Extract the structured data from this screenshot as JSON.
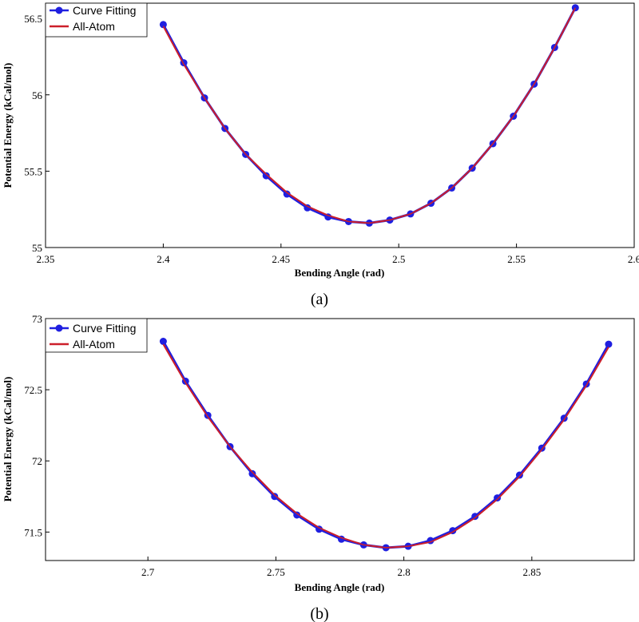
{
  "chart_data": [
    {
      "type": "line",
      "caption": "(a)",
      "xlabel": "Bending  Angle  (rad)",
      "ylabel": "Potential  Energy  (kCal/mol)",
      "xlim": [
        2.35,
        2.6
      ],
      "ylim": [
        55,
        56.6
      ],
      "xticks": [
        "2.35",
        "2.4",
        "2.45",
        "2.5",
        "2.55",
        "2.6"
      ],
      "yticks": [
        "55",
        "55.5",
        "56",
        "56.5"
      ],
      "legend_position": "top-left",
      "series": [
        {
          "name": "Curve  Fitting",
          "color": "#1f1fe0",
          "marker": "circle",
          "x": [
            2.4,
            2.4087,
            2.4175,
            2.4262,
            2.435,
            2.4437,
            2.4525,
            2.4612,
            2.47,
            2.4787,
            2.4875,
            2.4962,
            2.505,
            2.5137,
            2.5225,
            2.5312,
            2.54,
            2.5487,
            2.5575,
            2.5662,
            2.575
          ],
          "y": [
            56.46,
            56.21,
            55.98,
            55.78,
            55.61,
            55.47,
            55.35,
            55.26,
            55.2,
            55.17,
            55.16,
            55.18,
            55.22,
            55.29,
            55.39,
            55.52,
            55.68,
            55.86,
            56.07,
            56.31,
            56.57
          ]
        },
        {
          "name": "All-Atom",
          "color": "#cc1f2a",
          "marker": "none",
          "x": [
            2.4,
            2.4087,
            2.4175,
            2.4262,
            2.435,
            2.4437,
            2.4525,
            2.4612,
            2.47,
            2.4787,
            2.4875,
            2.4962,
            2.505,
            2.5137,
            2.5225,
            2.5312,
            2.54,
            2.5487,
            2.5575,
            2.5662,
            2.575
          ],
          "y": [
            56.45,
            56.2,
            55.98,
            55.78,
            55.61,
            55.48,
            55.36,
            55.27,
            55.21,
            55.17,
            55.16,
            55.18,
            55.22,
            55.29,
            55.39,
            55.52,
            55.68,
            55.86,
            56.07,
            56.31,
            56.57
          ]
        }
      ]
    },
    {
      "type": "line",
      "caption": "(b)",
      "xlabel": "Bending  Angle  (rad)",
      "ylabel": "Potential  Energy  (kCal/mol)",
      "xlim": [
        2.66,
        2.89
      ],
      "ylim": [
        71.3,
        73.0
      ],
      "xticks": [
        "2.7",
        "2.75",
        "2.8",
        "2.85"
      ],
      "yticks": [
        "71.5",
        "72",
        "72.5",
        "73"
      ],
      "legend_position": "top-left",
      "series": [
        {
          "name": "Curve  Fitting",
          "color": "#1f1fe0",
          "marker": "circle",
          "x": [
            2.706,
            2.7147,
            2.7234,
            2.7321,
            2.7408,
            2.7495,
            2.7582,
            2.7669,
            2.7756,
            2.7843,
            2.793,
            2.8017,
            2.8104,
            2.8191,
            2.8278,
            2.8365,
            2.8452,
            2.8539,
            2.8626,
            2.8713,
            2.88
          ],
          "y": [
            72.84,
            72.56,
            72.32,
            72.1,
            71.91,
            71.75,
            71.62,
            71.52,
            71.45,
            71.41,
            71.39,
            71.4,
            71.44,
            71.51,
            71.61,
            71.74,
            71.9,
            72.09,
            72.3,
            72.54,
            72.82
          ]
        },
        {
          "name": "All-Atom",
          "color": "#cc1f2a",
          "marker": "none",
          "x": [
            2.706,
            2.7147,
            2.7234,
            2.7321,
            2.7408,
            2.7495,
            2.7582,
            2.7669,
            2.7756,
            2.7843,
            2.793,
            2.8017,
            2.8104,
            2.8191,
            2.8278,
            2.8365,
            2.8452,
            2.8539,
            2.8626,
            2.8713,
            2.88
          ],
          "y": [
            72.82,
            72.55,
            72.31,
            72.1,
            71.92,
            71.76,
            71.63,
            71.53,
            71.46,
            71.41,
            71.39,
            71.4,
            71.43,
            71.5,
            71.6,
            71.73,
            71.89,
            72.08,
            72.29,
            72.53,
            72.8
          ]
        }
      ]
    }
  ]
}
